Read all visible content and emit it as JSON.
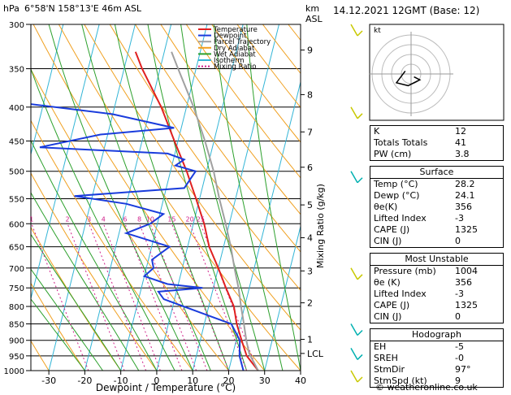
{
  "header": {
    "location": "6°58'N  158°13'E  46m  ASL",
    "datetime": "14.12.2021  12GMT  (Base: 12)"
  },
  "chart_data": {
    "type": "line",
    "title": "",
    "xlabel": "Dewpoint / Temperature (°C)",
    "ylabel": "hPa",
    "right_axis_label": "Mixing Ratio (g/kg)",
    "height_label_top": "km",
    "height_label_bottom": "ASL",
    "xlim": [
      -35,
      40
    ],
    "plim": [
      1000,
      300
    ],
    "x_ticks": [
      "-30",
      "-20",
      "-10",
      "0",
      "10",
      "20",
      "30",
      "40"
    ],
    "p_ticks": [
      "300",
      "350",
      "400",
      "450",
      "500",
      "550",
      "600",
      "650",
      "700",
      "750",
      "800",
      "850",
      "900",
      "950",
      "1000"
    ],
    "km_ticks": [
      {
        "p": 328,
        "label": "9"
      },
      {
        "p": 383,
        "label": "8"
      },
      {
        "p": 436,
        "label": "7"
      },
      {
        "p": 493,
        "label": "6"
      },
      {
        "p": 562,
        "label": "5"
      },
      {
        "p": 630,
        "label": "4"
      },
      {
        "p": 707,
        "label": "3"
      },
      {
        "p": 790,
        "label": "2"
      },
      {
        "p": 897,
        "label": "1"
      },
      {
        "p": 942,
        "label": "LCL"
      }
    ],
    "mixing_ratio_labels": [
      "1",
      "2",
      "3",
      "4",
      "6",
      "8",
      "10",
      "15",
      "20",
      "25"
    ],
    "legend": [
      "Temperature",
      "Dewpoint",
      "Parcel Trajectory",
      "Dry Adiabat",
      "Wet Adiabat",
      "Isotherm",
      "Mixing Ratio"
    ],
    "series": [
      {
        "name": "Temperature",
        "color": "#e02020",
        "points": [
          [
            1000,
            28.2
          ],
          [
            950,
            24
          ],
          [
            900,
            21.5
          ],
          [
            850,
            19
          ],
          [
            800,
            17
          ],
          [
            750,
            13.5
          ],
          [
            700,
            10
          ],
          [
            650,
            6
          ],
          [
            600,
            3
          ],
          [
            550,
            -1
          ],
          [
            500,
            -5.5
          ],
          [
            450,
            -11
          ],
          [
            400,
            -17
          ],
          [
            350,
            -25
          ],
          [
            330,
            -28
          ]
        ]
      },
      {
        "name": "Dewpoint",
        "color": "#1a3cdc",
        "points": [
          [
            1000,
            24.1
          ],
          [
            950,
            22
          ],
          [
            900,
            21
          ],
          [
            850,
            17.5
          ],
          [
            800,
            3
          ],
          [
            780,
            -3
          ],
          [
            760,
            -5
          ],
          [
            750,
            7
          ],
          [
            740,
            -3
          ],
          [
            720,
            -10
          ],
          [
            700,
            -8
          ],
          [
            680,
            -9
          ],
          [
            650,
            -5
          ],
          [
            620,
            -18
          ],
          [
            600,
            -12
          ],
          [
            580,
            -9
          ],
          [
            560,
            -20
          ],
          [
            545,
            -35
          ],
          [
            530,
            -5
          ],
          [
            500,
            -3
          ],
          [
            490,
            -9
          ],
          [
            480,
            -7
          ],
          [
            470,
            -12
          ],
          [
            460,
            -48
          ],
          [
            440,
            -32
          ],
          [
            430,
            -12
          ],
          [
            410,
            -30
          ],
          [
            395,
            -55
          ],
          [
            380,
            -60
          ],
          [
            350,
            -65
          ],
          [
            300,
            -80
          ]
        ]
      },
      {
        "name": "Parcel Trajectory",
        "color": "#a0a0a0",
        "points": [
          [
            1000,
            28.2
          ],
          [
            942,
            24.5
          ],
          [
            900,
            22.8
          ],
          [
            850,
            21
          ],
          [
            800,
            19
          ],
          [
            750,
            17
          ],
          [
            700,
            14.5
          ],
          [
            650,
            12
          ],
          [
            600,
            9
          ],
          [
            550,
            5.5
          ],
          [
            500,
            2
          ],
          [
            450,
            -2.5
          ],
          [
            400,
            -8
          ],
          [
            350,
            -15
          ],
          [
            330,
            -18
          ]
        ]
      }
    ],
    "hodograph": {
      "label": "kt",
      "rings_kt": [
        10,
        20,
        30,
        40
      ],
      "points": [
        [
          -2,
          1
        ],
        [
          -5,
          -3
        ],
        [
          -1,
          -4
        ],
        [
          3,
          -2
        ],
        [
          1,
          -1
        ]
      ]
    },
    "wind_barbs": [
      {
        "p": 300,
        "color": "#c8c800"
      },
      {
        "p": 400,
        "color": "#c8c800"
      },
      {
        "p": 500,
        "color": "#00b0b0"
      },
      {
        "p": 700,
        "color": "#c8c800"
      },
      {
        "p": 850,
        "color": "#00b0b0"
      },
      {
        "p": 925,
        "color": "#00b0b0"
      },
      {
        "p": 1000,
        "color": "#c8c800"
      }
    ]
  },
  "indices": {
    "top": [
      {
        "label": "K",
        "value": "12"
      },
      {
        "label": "Totals Totals",
        "value": "41"
      },
      {
        "label": "PW (cm)",
        "value": "3.8"
      }
    ],
    "surface": {
      "title": "Surface",
      "rows": [
        {
          "label": "Temp (°C)",
          "value": "28.2"
        },
        {
          "label": "Dewp (°C)",
          "value": "24.1"
        },
        {
          "label": "θe(K)",
          "value": "356"
        },
        {
          "label": "Lifted Index",
          "value": "-3"
        },
        {
          "label": "CAPE (J)",
          "value": "1325"
        },
        {
          "label": "CIN (J)",
          "value": "0"
        }
      ]
    },
    "most_unstable": {
      "title": "Most Unstable",
      "rows": [
        {
          "label": "Pressure (mb)",
          "value": "1004"
        },
        {
          "label": "θe (K)",
          "value": "356"
        },
        {
          "label": "Lifted Index",
          "value": "-3"
        },
        {
          "label": "CAPE (J)",
          "value": "1325"
        },
        {
          "label": "CIN (J)",
          "value": "0"
        }
      ]
    },
    "hodograph": {
      "title": "Hodograph",
      "rows": [
        {
          "label": "EH",
          "value": "-5"
        },
        {
          "label": "SREH",
          "value": "-0"
        },
        {
          "label": "StmDir",
          "value": "97°"
        },
        {
          "label": "StmSpd (kt)",
          "value": "9"
        }
      ]
    }
  },
  "credit": "© weatheronline.co.uk"
}
